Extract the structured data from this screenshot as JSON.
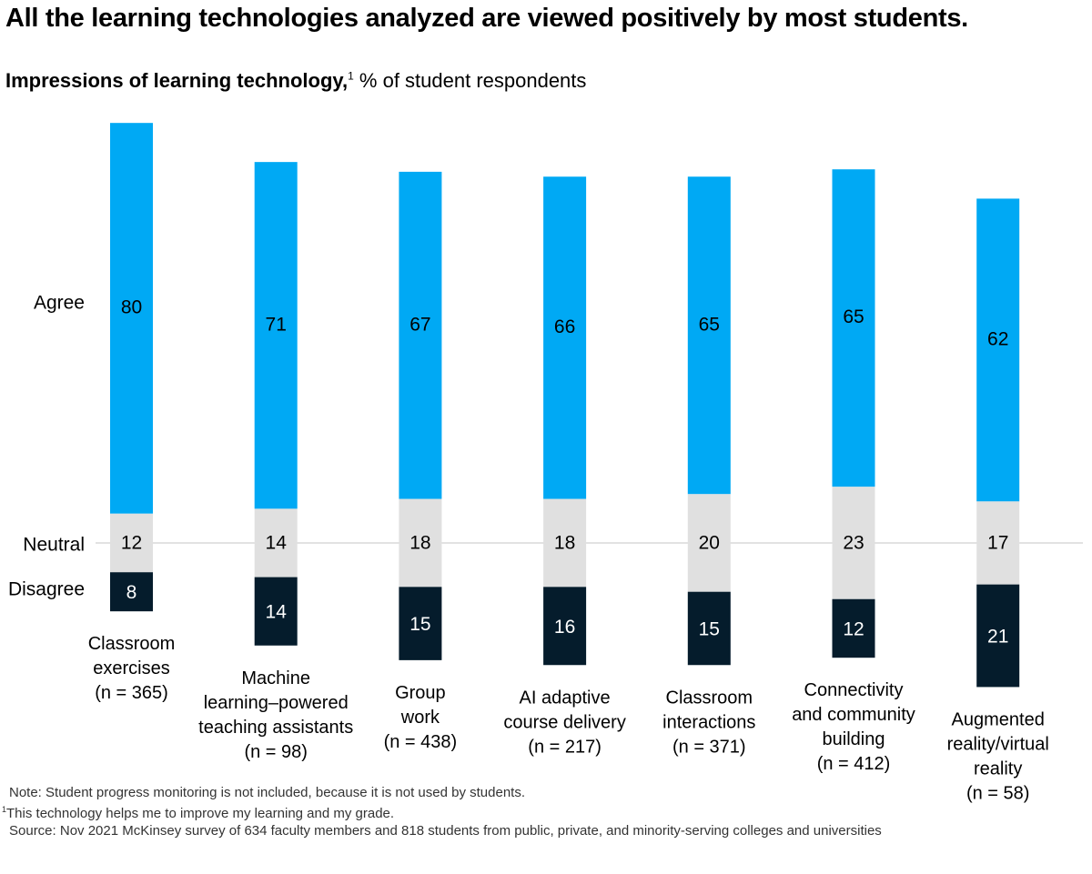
{
  "title": "All the learning technologies analyzed are viewed positively by most students.",
  "subtitle": {
    "bold": "Impressions of learning technology,",
    "sup": "1",
    "rest": " % of student respondents"
  },
  "colors": {
    "agree": "#00A9F4",
    "neutral": "#E0E0E0",
    "disagree": "#051C2C",
    "baseline": "#D9D9D9"
  },
  "notes": {
    "note": "Note: Student progress monitoring is not included, because it is not used by students.",
    "footnote_mark": "1",
    "footnote": "This technology helps me to improve my learning and my grade.",
    "source": "Source: Nov 2021 McKinsey survey of 634 faculty members and 818 students from public, private, and minority-serving colleges and universities"
  },
  "chart_data": {
    "type": "bar",
    "stacked": true,
    "aligned_on": "Neutral (centered)",
    "title": "Impressions of learning technology, % of student respondents",
    "xlabel": "",
    "ylabel": "% of student respondents",
    "categories": [
      [
        "Classroom",
        "exercises",
        "(n = 365)"
      ],
      [
        "Machine",
        "learning–powered",
        "teaching assistants",
        "(n = 98)"
      ],
      [
        "Group",
        "work",
        "(n = 438)"
      ],
      [
        "AI adaptive",
        "course delivery",
        "(n = 217)"
      ],
      [
        "Classroom",
        "interactions",
        "(n = 371)"
      ],
      [
        "Connectivity",
        "and community",
        "building",
        "(n = 412)"
      ],
      [
        "Augmented",
        "reality/virtual",
        "reality",
        "(n = 58)"
      ]
    ],
    "series": [
      {
        "name": "Agree",
        "values": [
          80,
          71,
          67,
          66,
          65,
          65,
          62
        ]
      },
      {
        "name": "Neutral",
        "values": [
          12,
          14,
          18,
          18,
          20,
          23,
          17
        ]
      },
      {
        "name": "Disagree",
        "values": [
          8,
          14,
          15,
          16,
          15,
          12,
          21
        ]
      }
    ],
    "legend": "left (row labels)",
    "grid": false
  }
}
